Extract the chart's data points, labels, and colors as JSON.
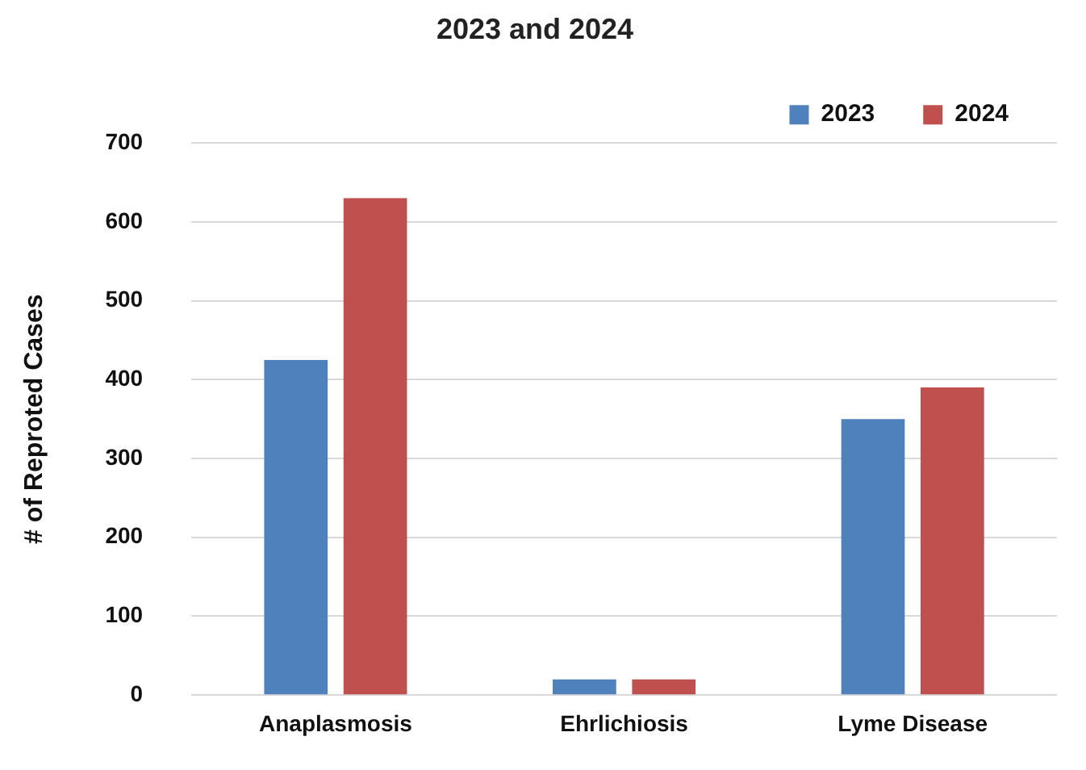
{
  "chart_data": {
    "type": "bar",
    "title": "2023 and 2024",
    "ylabel": "# of Reproted Cases",
    "categories": [
      "Anaplasmosis",
      "Ehrlichiosis",
      "Lyme Disease"
    ],
    "series": [
      {
        "name": "2023",
        "color": "#4f81bd",
        "values": [
          425,
          20,
          350
        ]
      },
      {
        "name": "2024",
        "color": "#c0504d",
        "values": [
          630,
          20,
          390
        ]
      }
    ],
    "ylim": [
      0,
      700
    ],
    "yticks": [
      0,
      100,
      200,
      300,
      400,
      500,
      600,
      700
    ],
    "grid": "y",
    "legend": "top right"
  }
}
